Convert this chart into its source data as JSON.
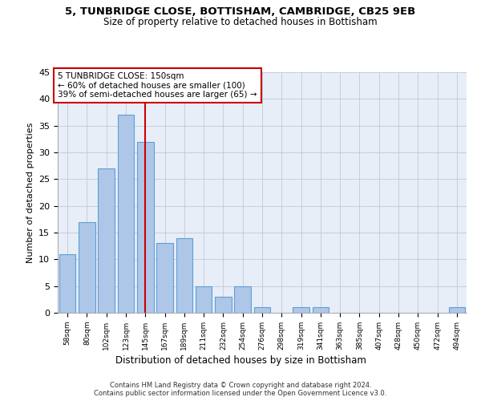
{
  "title1": "5, TUNBRIDGE CLOSE, BOTTISHAM, CAMBRIDGE, CB25 9EB",
  "title2": "Size of property relative to detached houses in Bottisham",
  "xlabel": "Distribution of detached houses by size in Bottisham",
  "ylabel": "Number of detached properties",
  "categories": [
    "58sqm",
    "80sqm",
    "102sqm",
    "123sqm",
    "145sqm",
    "167sqm",
    "189sqm",
    "211sqm",
    "232sqm",
    "254sqm",
    "276sqm",
    "298sqm",
    "319sqm",
    "341sqm",
    "363sqm",
    "385sqm",
    "407sqm",
    "428sqm",
    "450sqm",
    "472sqm",
    "494sqm"
  ],
  "values": [
    11,
    17,
    27,
    37,
    32,
    13,
    14,
    5,
    3,
    5,
    1,
    0,
    1,
    1,
    0,
    0,
    0,
    0,
    0,
    0,
    1
  ],
  "bar_color": "#aec6e8",
  "bar_edge_color": "#5f9fd4",
  "vline_position": 4.5,
  "vline_color": "#cc0000",
  "annotation_text": "5 TUNBRIDGE CLOSE: 150sqm\n← 60% of detached houses are smaller (100)\n39% of semi-detached houses are larger (65) →",
  "annotation_box_color": "white",
  "annotation_box_edge": "#cc0000",
  "ylim": [
    0,
    45
  ],
  "yticks": [
    0,
    5,
    10,
    15,
    20,
    25,
    30,
    35,
    40,
    45
  ],
  "background_color": "#e8eef8",
  "grid_color": "#c0c8d8",
  "footer1": "Contains HM Land Registry data © Crown copyright and database right 2024.",
  "footer2": "Contains public sector information licensed under the Open Government Licence v3.0."
}
